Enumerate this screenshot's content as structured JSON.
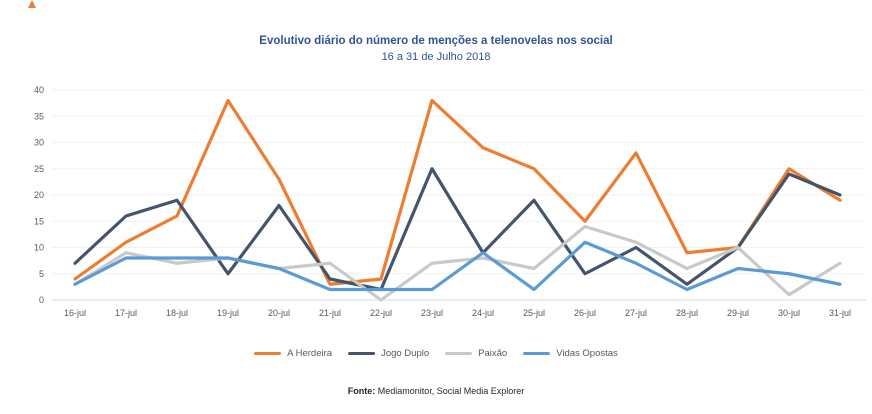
{
  "footer": {
    "bold": "Fonte:",
    "rest": " Mediamonitor, Social Media Explorer"
  },
  "colors": {
    "title_blue": "#2F5597",
    "axis_text": "#595959",
    "gridline": "#F2F2F2",
    "axis_line": "#D9D9D9",
    "footer_text": "#262626"
  },
  "chart_data": {
    "type": "line",
    "title": "Evolutivo diário do número de menções a telenovelas nos social",
    "subtitle": "16 a 31 de Julho 2018",
    "categories": [
      "16-jul",
      "17-jul",
      "18-jul",
      "19-jul",
      "20-jul",
      "21-jul",
      "22-jul",
      "23-jul",
      "24-jul",
      "25-jul",
      "26-jul",
      "27-jul",
      "28-jul",
      "29-jul",
      "30-jul",
      "31-jul"
    ],
    "series": [
      {
        "name": "A Herdeira",
        "color": "#ED7D31",
        "values": [
          4,
          11,
          16,
          38,
          23,
          3,
          4,
          38,
          29,
          25,
          15,
          28,
          9,
          10,
          25,
          19
        ]
      },
      {
        "name": "Jogo Duplo",
        "color": "#44546A",
        "values": [
          7,
          16,
          19,
          5,
          18,
          4,
          2,
          25,
          9,
          19,
          5,
          10,
          3,
          10,
          24,
          20
        ]
      },
      {
        "name": "Paixão",
        "color": "#C9C9C9",
        "values": [
          3,
          9,
          7,
          8,
          6,
          7,
          0,
          7,
          8,
          6,
          14,
          11,
          6,
          10,
          1,
          7
        ]
      },
      {
        "name": "Vidas Opostas",
        "color": "#5B9BD5",
        "values": [
          3,
          8,
          8,
          8,
          6,
          2,
          2,
          2,
          9,
          2,
          11,
          7,
          2,
          6,
          5,
          3
        ]
      }
    ],
    "xlabel": "",
    "ylabel": "",
    "ylim": [
      0,
      40
    ],
    "ytick_step": 5,
    "grid": true,
    "legend_position": "bottom"
  }
}
